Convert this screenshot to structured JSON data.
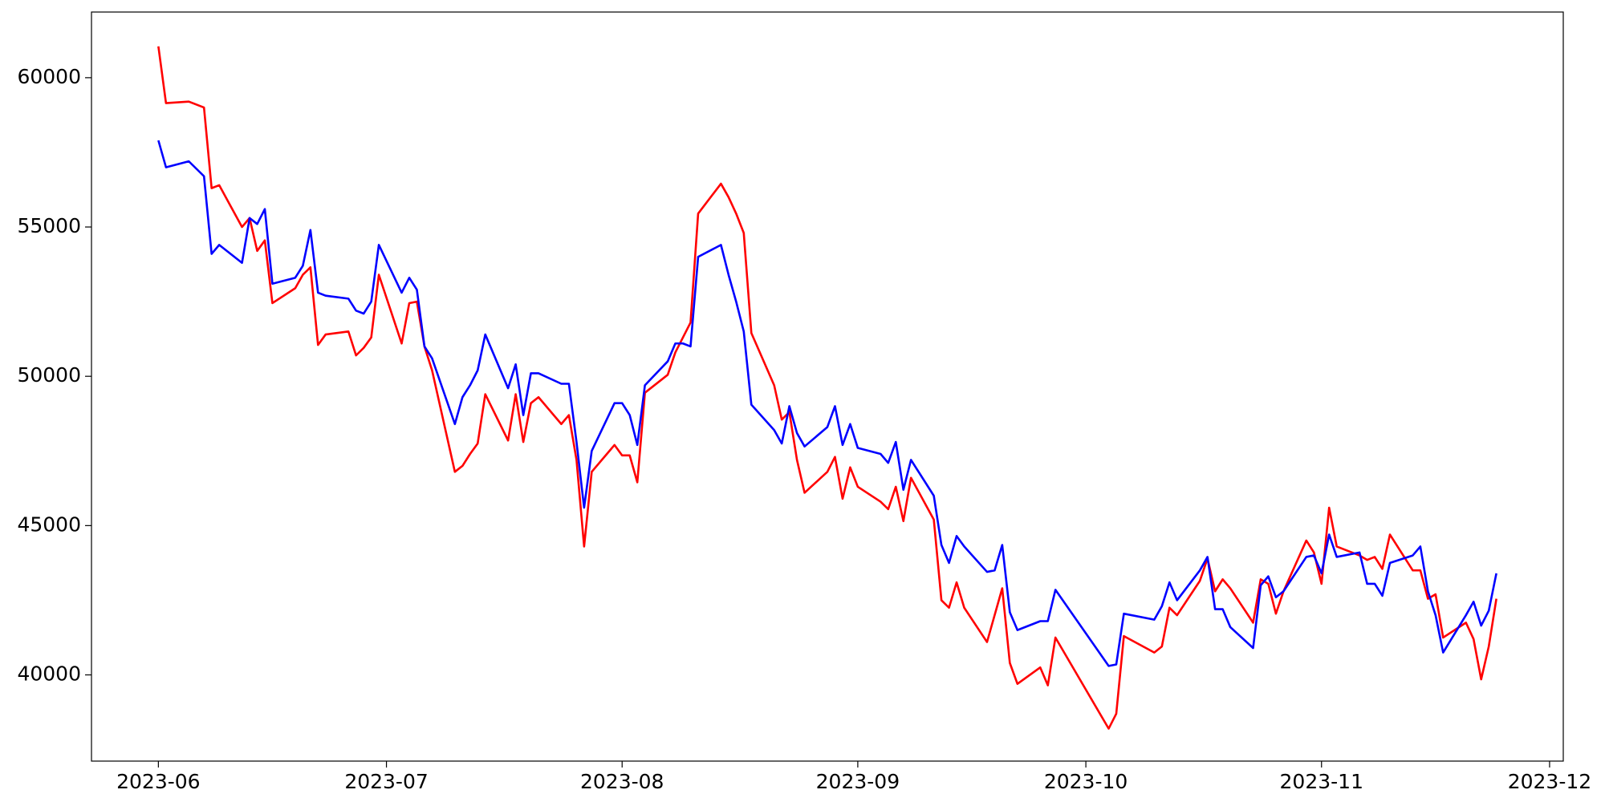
{
  "chart_data": {
    "type": "line",
    "x": [
      19509,
      19510,
      19513,
      19515,
      19516,
      19517,
      19520,
      19521,
      19522,
      19523,
      19524,
      19527,
      19528,
      19529,
      19530,
      19531,
      19534,
      19535,
      19536,
      19537,
      19538,
      19541,
      19542,
      19543,
      19544,
      19545,
      19548,
      19549,
      19550,
      19551,
      19552,
      19555,
      19556,
      19557,
      19558,
      19559,
      19562,
      19563,
      19564,
      19565,
      19566,
      19569,
      19570,
      19571,
      19572,
      19573,
      19576,
      19577,
      19578,
      19579,
      19580,
      19583,
      19584,
      19585,
      19586,
      19587,
      19590,
      19591,
      19592,
      19593,
      19594,
      19597,
      19598,
      19599,
      19600,
      19601,
      19604,
      19605,
      19606,
      19607,
      19608,
      19611,
      19612,
      19613,
      19614,
      19615,
      19618,
      19619,
      19620,
      19621,
      19622,
      19625,
      19626,
      19627,
      19634,
      19635,
      19636,
      19640,
      19641,
      19642,
      19643,
      19646,
      19647,
      19648,
      19649,
      19650,
      19653,
      19654,
      19655,
      19656,
      19657,
      19660,
      19661,
      19662,
      19663,
      19664,
      19667,
      19668,
      19669,
      19670,
      19671,
      19674,
      19675,
      19676,
      19677,
      19678,
      19681,
      19682,
      19683,
      19684,
      19685
    ],
    "series": [
      {
        "color": "#ff0000",
        "values": [
          61050,
          59150,
          59200,
          59000,
          56300,
          56400,
          55000,
          55300,
          54200,
          54550,
          52450,
          52950,
          53400,
          53650,
          51050,
          51400,
          51500,
          50700,
          50950,
          51300,
          53400,
          51100,
          52450,
          52500,
          51000,
          50200,
          46800,
          47000,
          47400,
          47750,
          49400,
          47850,
          49400,
          47800,
          49100,
          49300,
          48400,
          48700,
          47200,
          44300,
          46800,
          47700,
          47350,
          47350,
          46450,
          49450,
          50050,
          50800,
          51300,
          51800,
          55450,
          56450,
          56000,
          55450,
          54800,
          51450,
          49700,
          48550,
          48800,
          47200,
          46100,
          46800,
          47300,
          45900,
          46950,
          46300,
          45800,
          45550,
          46300,
          45150,
          46600,
          45200,
          42500,
          42250,
          43100,
          42250,
          41100,
          42000,
          42900,
          40400,
          39700,
          40250,
          39650,
          41250,
          38200,
          38700,
          41300,
          40750,
          40950,
          42250,
          42000,
          43150,
          43900,
          42800,
          43200,
          42900,
          41750,
          43200,
          43050,
          42050,
          42800,
          44500,
          44100,
          43050,
          45600,
          44300,
          44000,
          43850,
          43950,
          43550,
          44700,
          43500,
          43500,
          42550,
          42700,
          41250,
          41750,
          41200,
          39850,
          40950,
          42550
        ]
      },
      {
        "color": "#0000ff",
        "values": [
          57900,
          57000,
          57200,
          56700,
          54100,
          54400,
          53800,
          55300,
          55100,
          55600,
          53100,
          53300,
          53700,
          54900,
          52800,
          52700,
          52600,
          52200,
          52100,
          52500,
          54400,
          52800,
          53300,
          52900,
          51000,
          50600,
          48400,
          49300,
          49700,
          50200,
          51400,
          49600,
          50400,
          48700,
          50100,
          50100,
          49750,
          49750,
          47800,
          45600,
          47500,
          49100,
          49100,
          48700,
          47700,
          49700,
          50500,
          51100,
          51100,
          51000,
          54000,
          54400,
          53400,
          52500,
          51500,
          49050,
          48200,
          47750,
          49000,
          48100,
          47650,
          48300,
          49000,
          47700,
          48400,
          47600,
          47400,
          47100,
          47800,
          46200,
          47200,
          46000,
          44350,
          43750,
          44650,
          44300,
          43450,
          43500,
          44350,
          42100,
          41500,
          41800,
          41800,
          42850,
          40300,
          40350,
          42050,
          41850,
          42300,
          43100,
          42500,
          43500,
          43950,
          42200,
          42200,
          41600,
          40900,
          43000,
          43300,
          42600,
          42800,
          43950,
          44000,
          43400,
          44700,
          43950,
          44100,
          43050,
          43050,
          42650,
          43750,
          44000,
          44300,
          42800,
          42000,
          40750,
          42000,
          42450,
          41650,
          42150,
          43400
        ]
      }
    ],
    "xlim": [
      19500.2,
      19693.8
    ],
    "xticks": [
      {
        "value": 19509,
        "label": "2023-06"
      },
      {
        "value": 19539,
        "label": "2023-07"
      },
      {
        "value": 19570,
        "label": "2023-08"
      },
      {
        "value": 19601,
        "label": "2023-09"
      },
      {
        "value": 19631,
        "label": "2023-10"
      },
      {
        "value": 19662,
        "label": "2023-11"
      },
      {
        "value": 19692,
        "label": "2023-12"
      }
    ],
    "ylim": [
      37113,
      62199
    ],
    "yticks": [
      40000,
      45000,
      50000,
      55000,
      60000
    ]
  }
}
